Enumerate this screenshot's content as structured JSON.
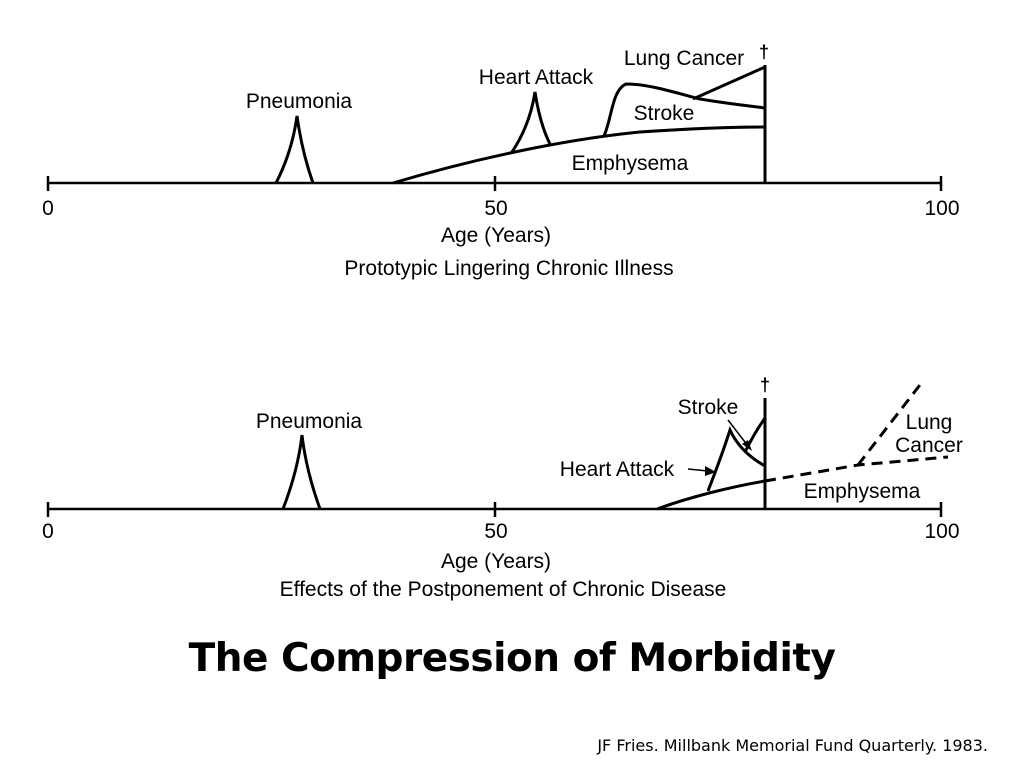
{
  "colors": {
    "background": "#ffffff",
    "ink": "#000000"
  },
  "top_panel": {
    "axis_ticks": [
      "0",
      "50",
      "100"
    ],
    "axis_label": "Age (Years)",
    "caption": "Prototypic Lingering Chronic Illness",
    "death_marker": "†",
    "illness_labels": {
      "pneumonia": "Pneumonia",
      "heart_attack": "Heart Attack",
      "lung_cancer": "Lung Cancer",
      "stroke": "Stroke",
      "emphysema": "Emphysema"
    }
  },
  "bottom_panel": {
    "axis_ticks": [
      "0",
      "50",
      "100"
    ],
    "axis_label": "Age (Years)",
    "caption": "Effects of the Postponement of Chronic Disease",
    "death_marker": "†",
    "illness_labels": {
      "pneumonia": "Pneumonia",
      "stroke": "Stroke",
      "heart_attack": "Heart Attack",
      "lung": "Lung",
      "cancer": "Cancer",
      "emphysema": "Emphysema"
    }
  },
  "slide": {
    "title": "The Compression of Morbidity",
    "citation": "JF Fries. Millbank Memorial Fund Quarterly. 1983."
  }
}
